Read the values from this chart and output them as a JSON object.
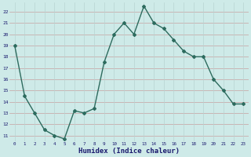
{
  "x": [
    0,
    1,
    2,
    3,
    4,
    5,
    6,
    7,
    8,
    9,
    10,
    11,
    12,
    13,
    14,
    15,
    16,
    17,
    18,
    19,
    20,
    21,
    22,
    23
  ],
  "y": [
    19,
    14.5,
    13,
    11.5,
    11,
    10.7,
    13.2,
    13,
    13.4,
    17.5,
    20,
    21,
    20,
    22.5,
    21,
    20.5,
    19.5,
    18.5,
    18,
    18,
    16,
    15,
    13.8,
    13.8
  ],
  "line_color": "#2d6b5e",
  "marker": "D",
  "markersize": 2,
  "linewidth": 1.0,
  "bg_color": "#ceeae8",
  "grid_color_h": "#c8a0a0",
  "grid_color_v": "#b8d4d2",
  "xlabel": "Humidex (Indice chaleur)",
  "xlabel_fontsize": 6.5,
  "xlabel_color": "#1a1a6e",
  "tick_color": "#1a1a6e",
  "ylim": [
    10.5,
    22.8
  ],
  "xlim": [
    -0.5,
    23.5
  ],
  "yticks": [
    11,
    12,
    13,
    14,
    15,
    16,
    17,
    18,
    19,
    20,
    21,
    22
  ],
  "xticks": [
    0,
    1,
    2,
    3,
    4,
    5,
    6,
    7,
    8,
    9,
    10,
    11,
    12,
    13,
    14,
    15,
    16,
    17,
    18,
    19,
    20,
    21,
    22,
    23
  ],
  "figsize": [
    3.2,
    2.0
  ],
  "dpi": 100
}
